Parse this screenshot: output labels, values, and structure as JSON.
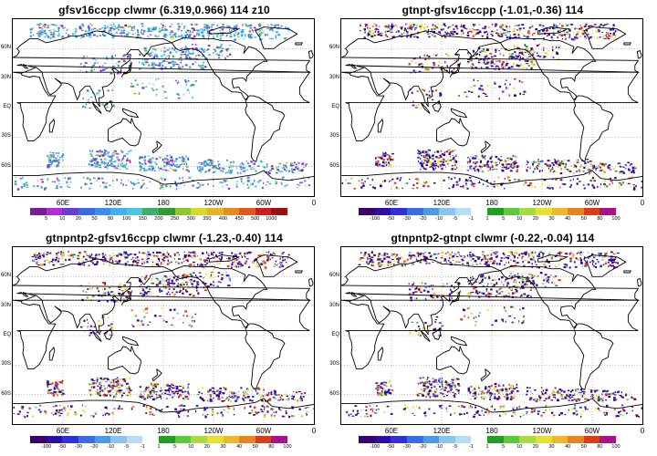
{
  "panels": [
    {
      "id": "p1",
      "title": "gfsv16ccpp  clwmr  (6.319,0.966)  114  z10",
      "scale": "abs",
      "colorbar": {
        "colors": [
          "#7a1a9c",
          "#b62bd6",
          "#6b3bd6",
          "#3b6be0",
          "#3c8fe8",
          "#41b0ee",
          "#48c9d9",
          "#3cb06a",
          "#2e9b2e",
          "#8ec62e",
          "#d8d82a",
          "#e8b324",
          "#e88c20",
          "#e25a1c",
          "#cc1f1a",
          "#9c1010"
        ],
        "labels": [
          "5",
          "10",
          "20",
          "50",
          "80",
          "100",
          "150",
          "200",
          "250",
          "300",
          "350",
          "400",
          "450",
          "500",
          "1000"
        ]
      },
      "x_ticks": [
        "60E",
        "120E",
        "180",
        "120W",
        "60W",
        "0"
      ],
      "y_ticks": [
        "60N",
        "30N",
        "EQ",
        "30S",
        "60S"
      ]
    },
    {
      "id": "p2",
      "title": "gtnpt-gfsv16ccpp  (-1.01,-0.36)  114",
      "scale": "diff",
      "colorbar": {
        "colors": [
          "#3a0070",
          "#2a10a8",
          "#3030d8",
          "#3a6ce8",
          "#4a9ae8",
          "#8cc4f0",
          "#b8def6",
          "#ffffff",
          "#20a020",
          "#5cc83c",
          "#a8dc3c",
          "#e8e030",
          "#f0b828",
          "#e88420",
          "#d83c18",
          "#a8108c"
        ],
        "labels": [
          "-100",
          "-50",
          "-30",
          "-20",
          "-10",
          "-5",
          "-1",
          "1",
          "5",
          "10",
          "20",
          "30",
          "40",
          "50",
          "80",
          "100"
        ]
      },
      "x_ticks": [
        "60E",
        "120E",
        "180",
        "120W",
        "60W",
        "0"
      ],
      "y_ticks": [
        "60N",
        "30N",
        "EQ",
        "30S",
        "60S"
      ]
    },
    {
      "id": "p3",
      "title": "gtnpntp2-gfsv16ccpp  clwmr  (-1.23,-0.40)  114",
      "scale": "diff",
      "colorbar": {
        "colors": [
          "#3a0070",
          "#2a10a8",
          "#3030d8",
          "#3a6ce8",
          "#4a9ae8",
          "#8cc4f0",
          "#b8def6",
          "#ffffff",
          "#20a020",
          "#5cc83c",
          "#a8dc3c",
          "#e8e030",
          "#f0b828",
          "#e88420",
          "#d83c18",
          "#a8108c"
        ],
        "labels": [
          "-100",
          "-50",
          "-30",
          "-20",
          "-10",
          "-5",
          "-1",
          "1",
          "5",
          "10",
          "20",
          "30",
          "40",
          "50",
          "80",
          "100"
        ]
      },
      "x_ticks": [
        "60E",
        "120E",
        "180",
        "120W",
        "60W",
        "0"
      ],
      "y_ticks": [
        "60N",
        "30N",
        "EQ",
        "30S",
        "60S"
      ]
    },
    {
      "id": "p4",
      "title": "gtnpntp2-gtnpt  clwmr  (-0.22,-0.04)  114",
      "scale": "diff",
      "colorbar": {
        "colors": [
          "#3a0070",
          "#2a10a8",
          "#3030d8",
          "#3a6ce8",
          "#4a9ae8",
          "#8cc4f0",
          "#b8def6",
          "#ffffff",
          "#20a020",
          "#5cc83c",
          "#a8dc3c",
          "#e8e030",
          "#f0b828",
          "#e88420",
          "#d83c18",
          "#a8108c"
        ],
        "labels": [
          "-100",
          "-50",
          "-30",
          "-20",
          "-10",
          "-5",
          "-1",
          "1",
          "5",
          "10",
          "20",
          "30",
          "40",
          "50",
          "80",
          "100"
        ]
      },
      "x_ticks": [
        "60E",
        "120E",
        "180",
        "120W",
        "60W",
        "0"
      ],
      "y_ticks": [
        "60N",
        "30N",
        "EQ",
        "30S",
        "60S"
      ]
    }
  ]
}
